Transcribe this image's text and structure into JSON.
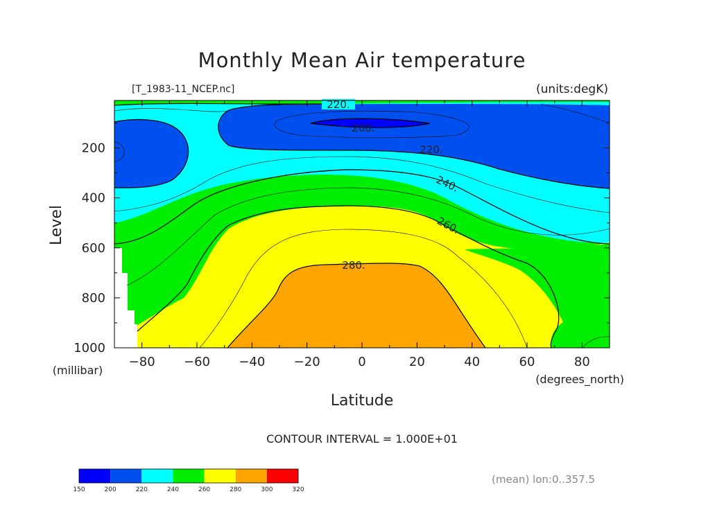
{
  "chart_data": {
    "type": "filled-contour",
    "title": "Monthly Mean Air temperature",
    "subtitle_left": "[T_1983-11_NCEP.nc]",
    "subtitle_right": "(units:degK)",
    "xlabel": "Latitude",
    "xunits": "(degrees_north)",
    "ylabel": "Level",
    "yunits": "(millibar)",
    "xlim": [
      -90,
      90
    ],
    "ylim": [
      1000,
      10
    ],
    "y_inverted": true,
    "x_ticks": [
      -80,
      -60,
      -40,
      -20,
      0,
      20,
      40,
      60,
      80
    ],
    "y_ticks": [
      200,
      400,
      600,
      800,
      1000
    ],
    "contour_interval": "CONTOUR INTERVAL = 1.000E+01",
    "contour_labels": [
      {
        "text": "220.",
        "lat": -9,
        "level": 20
      },
      {
        "text": "200.",
        "lat": 0,
        "level": 100
      },
      {
        "text": "220.",
        "lat": 25,
        "level": 220
      },
      {
        "text": "240.",
        "lat": 34,
        "level": 330
      },
      {
        "text": "260.",
        "lat": 34,
        "level": 520
      },
      {
        "text": "280.",
        "lat": -3,
        "level": 670
      }
    ],
    "levels": [
      150,
      200,
      220,
      240,
      260,
      280,
      300,
      320
    ],
    "colors": [
      "#0000ff",
      "#0050f0",
      "#00ffff",
      "#00ee00",
      "#ffff00",
      "#ffa500",
      "#ff0000"
    ],
    "colorbar_labels": [
      "150",
      "200",
      "220",
      "240",
      "260",
      "280",
      "300",
      "320"
    ],
    "footnote": "(mean) lon:0..357.5"
  }
}
